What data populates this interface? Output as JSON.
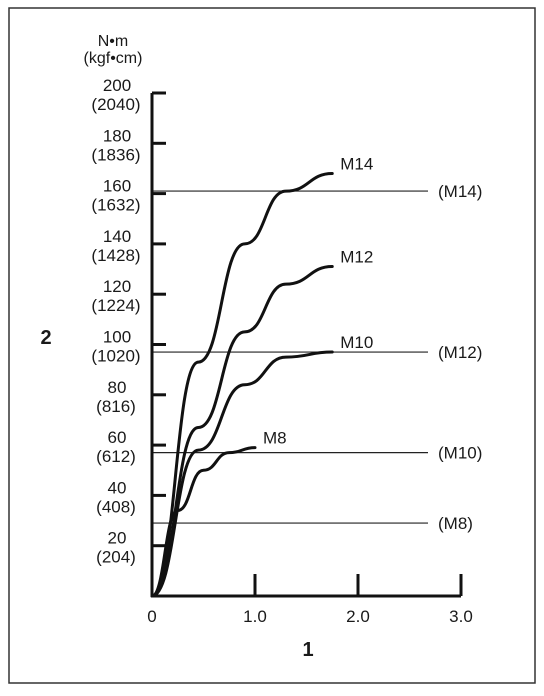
{
  "chart_data": {
    "type": "line",
    "unit": {
      "line1": "N•m",
      "line2": "(kgf•cm)"
    },
    "xlabel": "1",
    "ylabel": "2",
    "xlim": [
      0,
      3.0
    ],
    "ylim": [
      0,
      200
    ],
    "x_ticks": [
      {
        "value": 0,
        "label": "0"
      },
      {
        "value": 1.0,
        "label": "1.0"
      },
      {
        "value": 2.0,
        "label": "2.0"
      },
      {
        "value": 3.0,
        "label": "3.0"
      }
    ],
    "y_ticks": [
      {
        "value": 20,
        "label": "20",
        "sub": "(204)"
      },
      {
        "value": 40,
        "label": "40",
        "sub": "(408)"
      },
      {
        "value": 60,
        "label": "60",
        "sub": "(612)"
      },
      {
        "value": 80,
        "label": "80",
        "sub": "(816)"
      },
      {
        "value": 100,
        "label": "100",
        "sub": "(1020)"
      },
      {
        "value": 120,
        "label": "120",
        "sub": "(1224)"
      },
      {
        "value": 140,
        "label": "140",
        "sub": "(1428)"
      },
      {
        "value": 160,
        "label": "160",
        "sub": "(1632)"
      },
      {
        "value": 180,
        "label": "180",
        "sub": "(1836)"
      },
      {
        "value": 200,
        "label": "200",
        "sub": "(2040)"
      }
    ],
    "series": [
      {
        "name": "M8",
        "x": [
          0,
          0.25,
          0.5,
          0.75,
          1.0
        ],
        "y": [
          0,
          34,
          50,
          57,
          59
        ]
      },
      {
        "name": "M10",
        "x": [
          0,
          0.45,
          0.9,
          1.3,
          1.75
        ],
        "y": [
          0,
          58,
          84,
          95,
          97
        ]
      },
      {
        "name": "M12",
        "x": [
          0,
          0.45,
          0.9,
          1.3,
          1.75
        ],
        "y": [
          0,
          67,
          105,
          124,
          131
        ]
      },
      {
        "name": "M14",
        "x": [
          0,
          0.45,
          0.9,
          1.3,
          1.75
        ],
        "y": [
          0,
          93,
          140,
          161,
          168
        ]
      }
    ],
    "reference_lines": [
      {
        "name": "(M14)",
        "y": 161
      },
      {
        "name": "(M12)",
        "y": 97
      },
      {
        "name": "(M10)",
        "y": 57
      },
      {
        "name": "(M8)",
        "y": 29
      }
    ],
    "grid": false,
    "legend": "none"
  }
}
